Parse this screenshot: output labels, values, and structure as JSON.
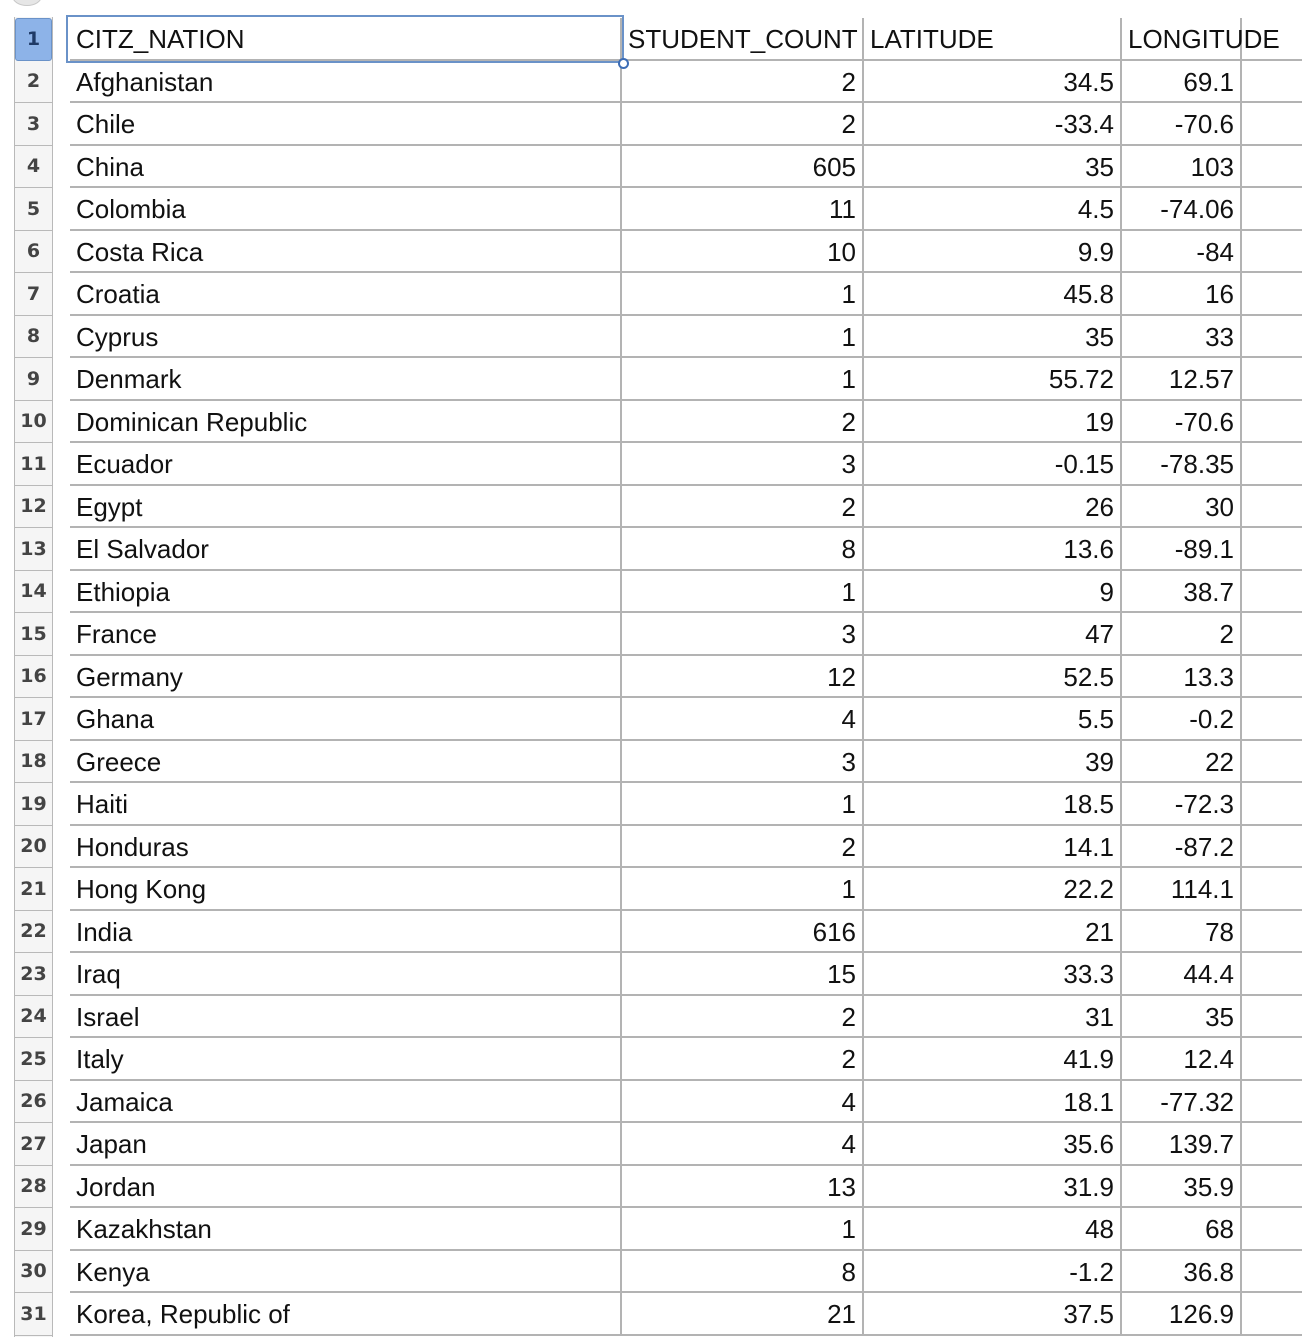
{
  "sheet": {
    "active_cell_row": "1",
    "headers": [
      "CITZ_NATION",
      "STUDENT_COUNT",
      "LATITUDE",
      "LONGITUDE"
    ],
    "rows": [
      {
        "num": "2",
        "cells": [
          "Afghanistan",
          "2",
          "34.5",
          "69.1"
        ]
      },
      {
        "num": "3",
        "cells": [
          "Chile",
          "2",
          "-33.4",
          "-70.6"
        ]
      },
      {
        "num": "4",
        "cells": [
          "China",
          "605",
          "35",
          "103"
        ]
      },
      {
        "num": "5",
        "cells": [
          "Colombia",
          "11",
          "4.5",
          "-74.06"
        ]
      },
      {
        "num": "6",
        "cells": [
          "Costa Rica",
          "10",
          "9.9",
          "-84"
        ]
      },
      {
        "num": "7",
        "cells": [
          "Croatia",
          "1",
          "45.8",
          "16"
        ]
      },
      {
        "num": "8",
        "cells": [
          "Cyprus",
          "1",
          "35",
          "33"
        ]
      },
      {
        "num": "9",
        "cells": [
          "Denmark",
          "1",
          "55.72",
          "12.57"
        ]
      },
      {
        "num": "10",
        "cells": [
          "Dominican Republic",
          "2",
          "19",
          "-70.6"
        ]
      },
      {
        "num": "11",
        "cells": [
          "Ecuador",
          "3",
          "-0.15",
          "-78.35"
        ]
      },
      {
        "num": "12",
        "cells": [
          "Egypt",
          "2",
          "26",
          "30"
        ]
      },
      {
        "num": "13",
        "cells": [
          "El Salvador",
          "8",
          "13.6",
          "-89.1"
        ]
      },
      {
        "num": "14",
        "cells": [
          "Ethiopia",
          "1",
          "9",
          "38.7"
        ]
      },
      {
        "num": "15",
        "cells": [
          "France",
          "3",
          "47",
          "2"
        ]
      },
      {
        "num": "16",
        "cells": [
          "Germany",
          "12",
          "52.5",
          "13.3"
        ]
      },
      {
        "num": "17",
        "cells": [
          "Ghana",
          "4",
          "5.5",
          "-0.2"
        ]
      },
      {
        "num": "18",
        "cells": [
          "Greece",
          "3",
          "39",
          "22"
        ]
      },
      {
        "num": "19",
        "cells": [
          "Haiti",
          "1",
          "18.5",
          "-72.3"
        ]
      },
      {
        "num": "20",
        "cells": [
          "Honduras",
          "2",
          "14.1",
          "-87.2"
        ]
      },
      {
        "num": "21",
        "cells": [
          "Hong Kong",
          "1",
          "22.2",
          "114.1"
        ]
      },
      {
        "num": "22",
        "cells": [
          "India",
          "616",
          "21",
          "78"
        ]
      },
      {
        "num": "23",
        "cells": [
          "Iraq",
          "15",
          "33.3",
          "44.4"
        ]
      },
      {
        "num": "24",
        "cells": [
          "Israel",
          "2",
          "31",
          "35"
        ]
      },
      {
        "num": "25",
        "cells": [
          "Italy",
          "2",
          "41.9",
          "12.4"
        ]
      },
      {
        "num": "26",
        "cells": [
          "Jamaica",
          "4",
          "18.1",
          "-77.32"
        ]
      },
      {
        "num": "27",
        "cells": [
          "Japan",
          "4",
          "35.6",
          "139.7"
        ]
      },
      {
        "num": "28",
        "cells": [
          "Jordan",
          "13",
          "31.9",
          "35.9"
        ]
      },
      {
        "num": "29",
        "cells": [
          "Kazakhstan",
          "1",
          "48",
          "68"
        ]
      },
      {
        "num": "30",
        "cells": [
          "Kenya",
          "8",
          "-1.2",
          "36.8"
        ]
      },
      {
        "num": "31",
        "cells": [
          "Korea, Republic of",
          "21",
          "37.5",
          "126.9"
        ]
      }
    ]
  }
}
